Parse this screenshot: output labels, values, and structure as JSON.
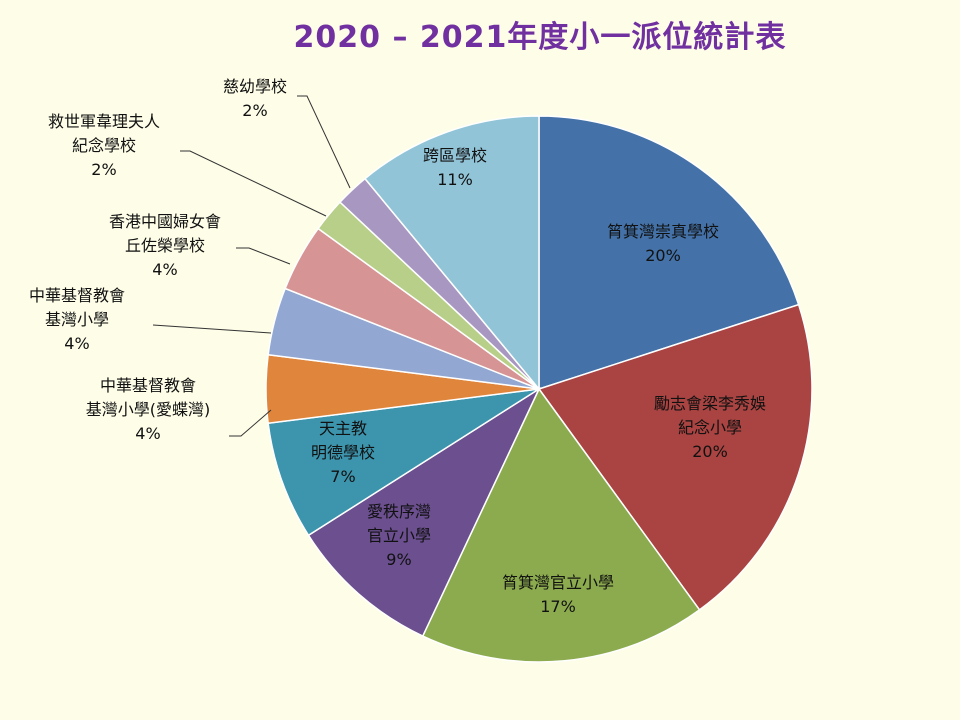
{
  "chart_data": {
    "type": "pie",
    "title": "2020 – 2021年度小一派位統計表",
    "slices": [
      {
        "name": "筲箕灣崇真學校",
        "value": 20,
        "label": "20%",
        "color": "#4472a8"
      },
      {
        "name": "勵志會梁李秀娛紀念小學",
        "value": 20,
        "label": "20%",
        "color": "#a94442"
      },
      {
        "name": "筲箕灣官立小學",
        "value": 17,
        "label": "17%",
        "color": "#8cab4e"
      },
      {
        "name": "愛秩序灣官立小學",
        "value": 9,
        "label": "9%",
        "color": "#6b4f8f"
      },
      {
        "name": "天主教明德學校",
        "value": 7,
        "label": "7%",
        "color": "#3c95ad"
      },
      {
        "name": "中華基督教會基灣小學(愛蝶灣)",
        "value": 4,
        "label": "4%",
        "color": "#e0853c"
      },
      {
        "name": "中華基督教會基灣小學",
        "value": 4,
        "label": "4%",
        "color": "#92a8d3"
      },
      {
        "name": "香港中國婦女會丘佐榮學校",
        "value": 4,
        "label": "4%",
        "color": "#d69594"
      },
      {
        "name": "救世軍韋理夫人紀念學校",
        "value": 2,
        "label": "2%",
        "color": "#b7cf88"
      },
      {
        "name": "慈幼學校",
        "value": 2,
        "label": "2%",
        "color": "#a898c1"
      },
      {
        "name": "跨區學校",
        "value": 11,
        "label": "11%",
        "color": "#92c4d8"
      }
    ],
    "label_lines": [
      [
        "筲箕灣崇真學校"
      ],
      [
        "勵志會梁李秀娛",
        "紀念小學"
      ],
      [
        "筲箕灣官立小學"
      ],
      [
        "愛秩序灣",
        "官立小學"
      ],
      [
        "天主教",
        "明德學校"
      ],
      [
        "中華基督教會",
        "基灣小學(愛蝶灣)"
      ],
      [
        "中華基督教會",
        "基灣小學"
      ],
      [
        "香港中國婦女會",
        "丘佐榮學校"
      ],
      [
        "救世軍韋理夫人",
        "紀念學校"
      ],
      [
        "慈幼學校"
      ],
      [
        "跨區學校"
      ]
    ]
  }
}
